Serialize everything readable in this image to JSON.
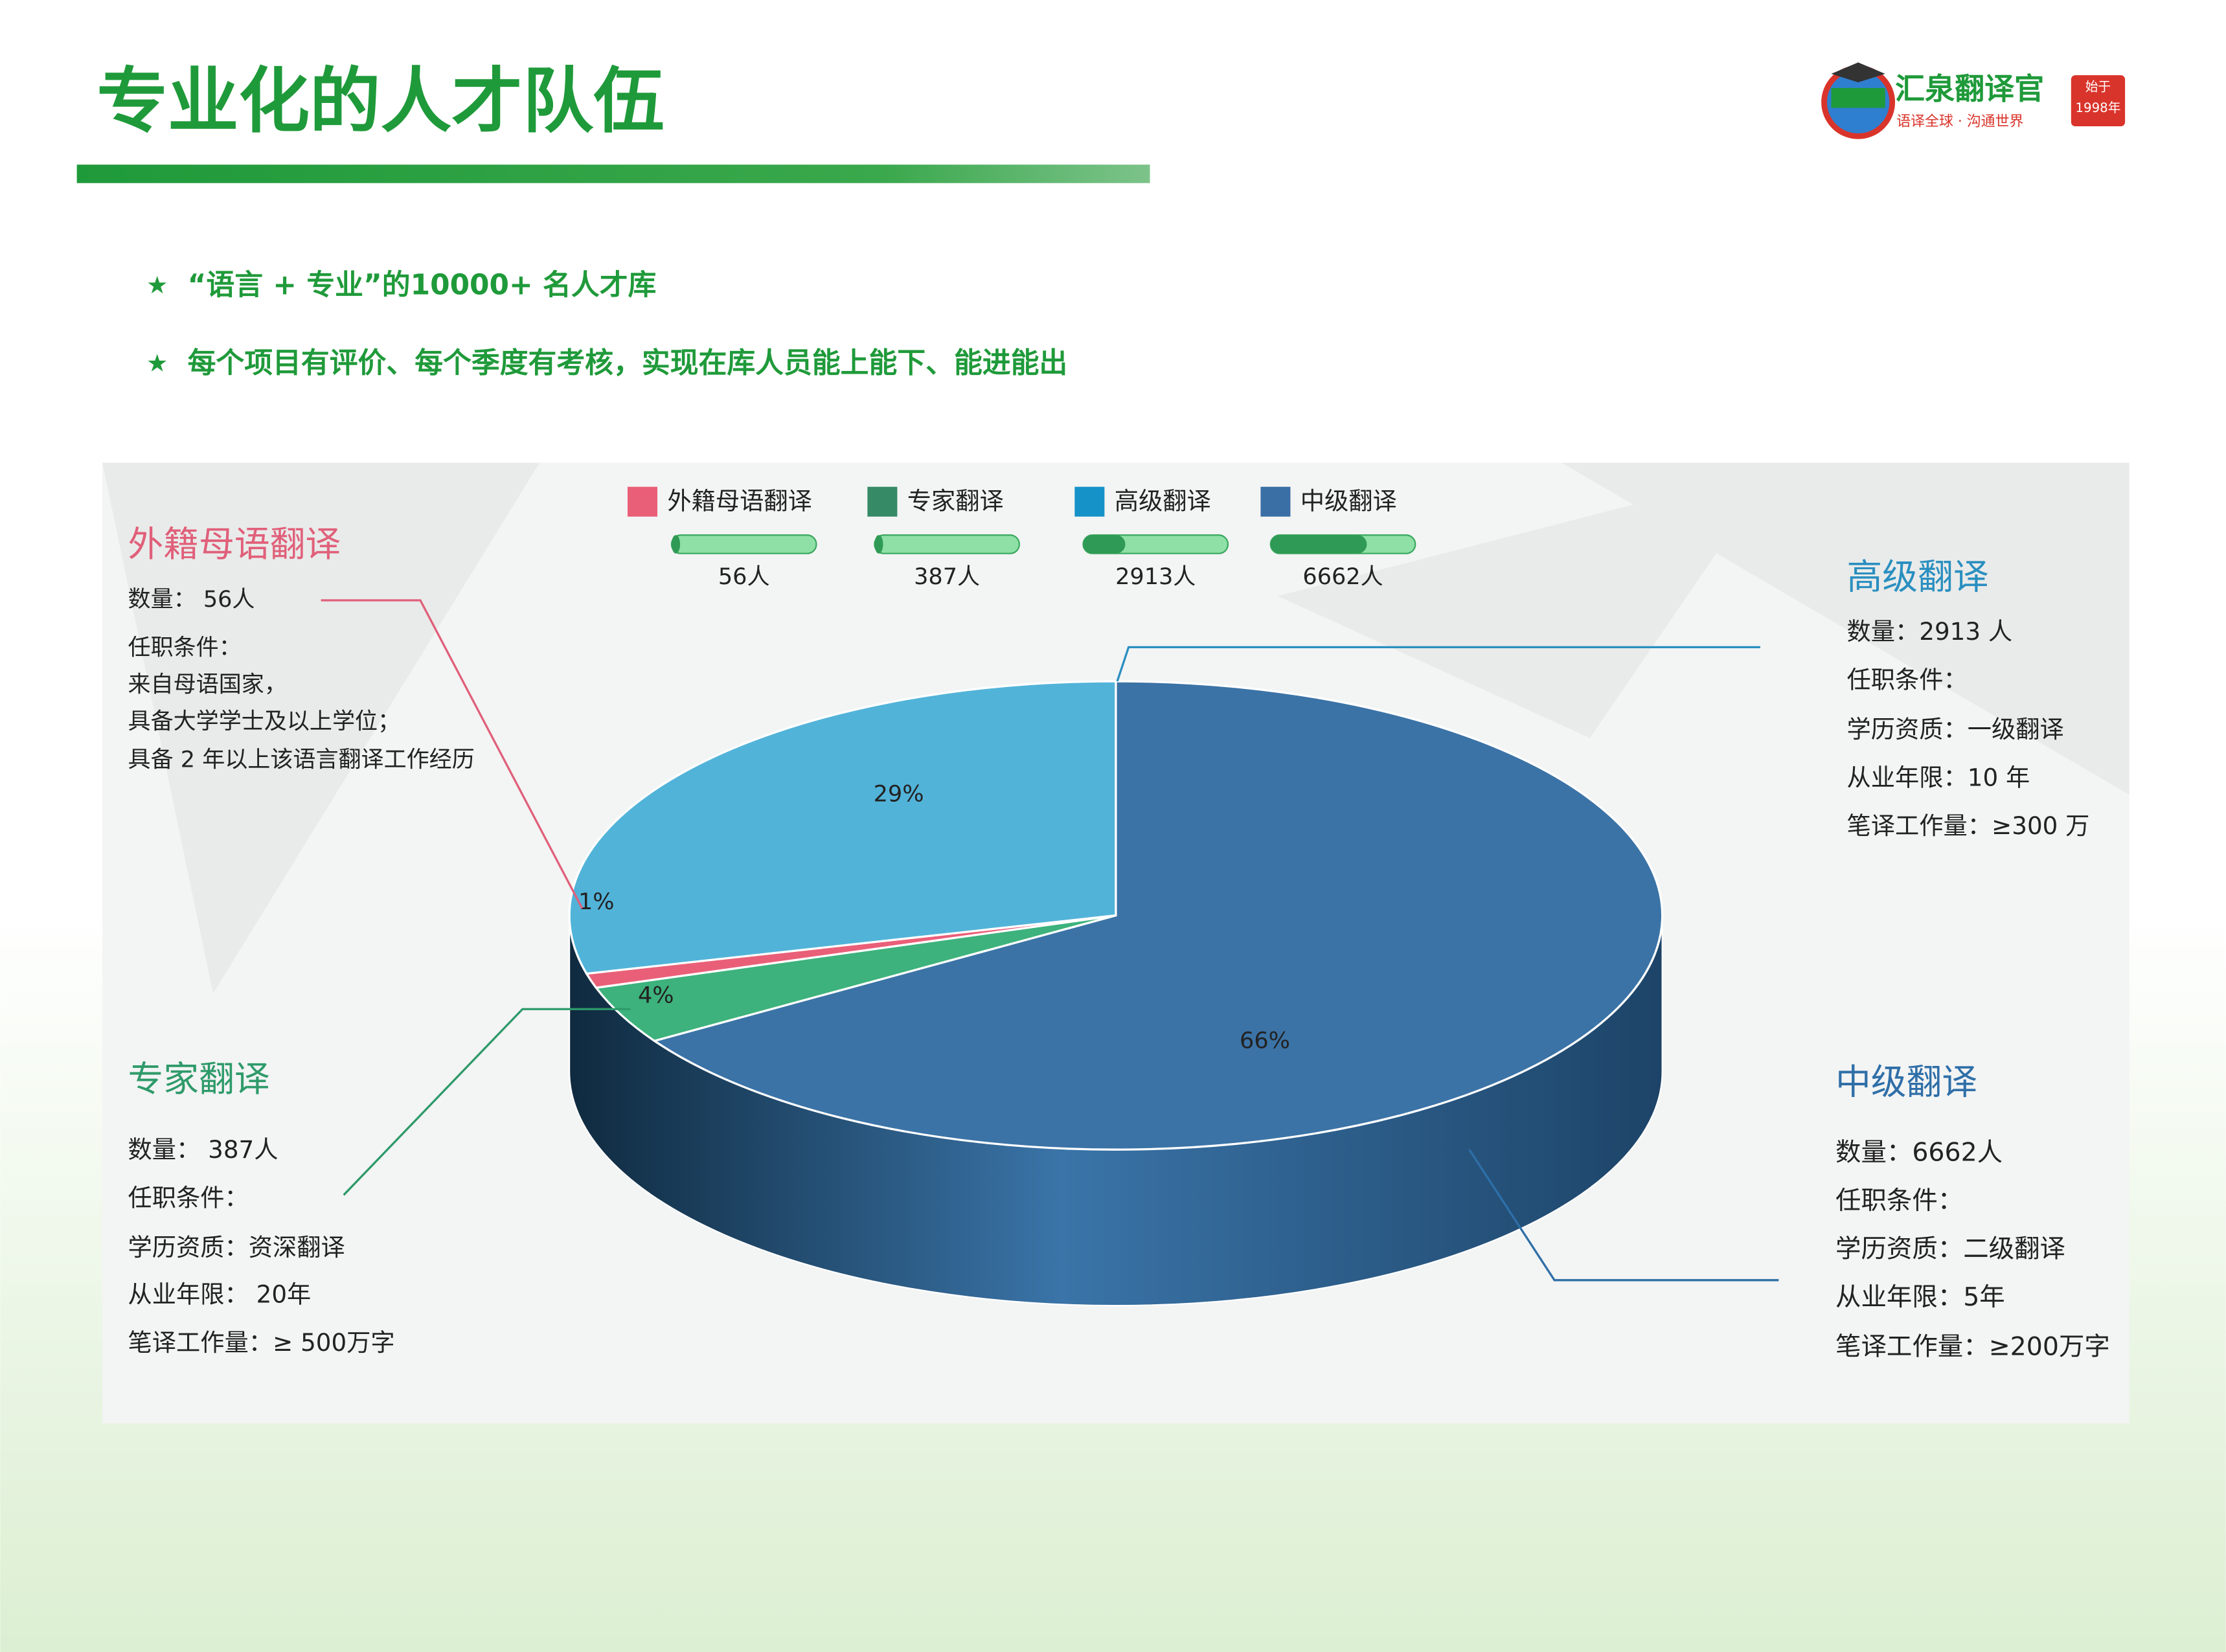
{
  "header": {
    "title": "专业化的人才队伍",
    "logo_name": "汇泉翻译官",
    "logo_slogan": "语译全球 · 沟通世界",
    "logo_seal": "始于1998年"
  },
  "bullets": [
    "“语言 + 专业”的10000+ 名人才库",
    "每个项目有评价、每个季度有考核，实现在库人员能上能下、能进能出"
  ],
  "chart_data": {
    "type": "pie",
    "categories": [
      "外籍母语翻译",
      "专家翻译",
      "高级翻译",
      "中级翻译"
    ],
    "values": [
      1,
      4,
      29,
      66
    ],
    "value_labels": [
      "1%",
      "4%",
      "29%",
      "66%"
    ],
    "colors": [
      "#ea5f78",
      "#3db27c",
      "#52b3d9",
      "#3b73a6"
    ],
    "legend_colors": [
      "#ea5f78",
      "#368a66",
      "#1592c8",
      "#3a6fa5"
    ],
    "counts": [
      56,
      387,
      2913,
      6662
    ],
    "count_labels": [
      "56人",
      "387人",
      "2913人",
      "6662人"
    ],
    "details": [
      {
        "title": "外籍母语翻译",
        "lines": [
          "数量：   56人",
          "任职条件：",
          "来自母语国家，",
          "具备大学学士及以上学位；",
          "具备 2 年以上该语言翻译工作经历"
        ]
      },
      {
        "title": "专家翻译",
        "lines": [
          "数量：   387人",
          "任职条件：",
          "学历资质：资深翻译",
          "从业年限： 20年",
          "笔译工作量：≥ 500万字"
        ]
      },
      {
        "title": "高级翻译",
        "lines": [
          "数量：2913 人",
          "任职条件：",
          "学历资质：一级翻译",
          "从业年限：10 年",
          "笔译工作量：≥300 万"
        ]
      },
      {
        "title": "中级翻译",
        "lines": [
          "数量：6662人",
          "任职条件：",
          "学历资质：二级翻译",
          "从业年限：5年",
          "笔译工作量：≥200万字"
        ]
      }
    ]
  }
}
